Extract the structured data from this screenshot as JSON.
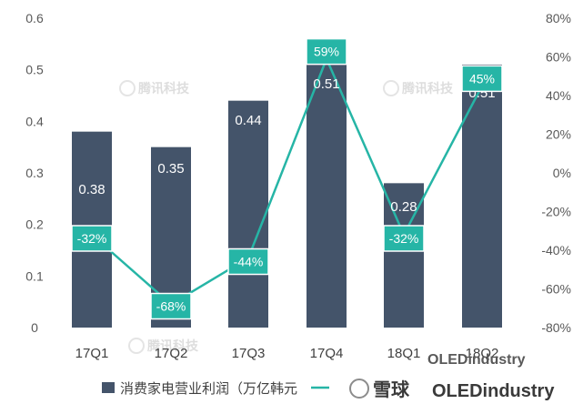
{
  "chart_data": {
    "type": "bar",
    "categories": [
      "17Q1",
      "17Q2",
      "17Q3",
      "17Q4",
      "18Q1",
      "18Q2"
    ],
    "series": [
      {
        "name": "消费家电营业利润（万亿韩元",
        "type": "bar",
        "axis": "left",
        "values": [
          0.38,
          0.35,
          0.44,
          0.51,
          0.28,
          0.51
        ],
        "labels": [
          "0.38",
          "0.35",
          "0.44",
          "0.51",
          "0.28",
          "0.51"
        ]
      },
      {
        "type": "line",
        "axis": "right",
        "values": [
          -32,
          -68,
          -44,
          59,
          -32,
          45
        ],
        "labels": [
          "-32%",
          "-68%",
          "-44%",
          "59%",
          "-32%",
          "45%"
        ]
      }
    ],
    "ylim": [
      0,
      0.6
    ],
    "yticks": [
      "0",
      "0.1",
      "0.2",
      "0.3",
      "0.4",
      "0.5",
      "0.6"
    ],
    "y2lim": [
      -80,
      80
    ],
    "y2ticks": [
      "-80%",
      "-60%",
      "-40%",
      "-20%",
      "0%",
      "20%",
      "40%",
      "60%",
      "80%"
    ],
    "grid": false,
    "legend": "bottom"
  },
  "colors": {
    "bar": "#44546a",
    "line": "#26b5a6",
    "badge": "#26b5a6"
  },
  "watermarks": [
    "腾讯科技",
    "雪球",
    "OLEDindustry"
  ]
}
